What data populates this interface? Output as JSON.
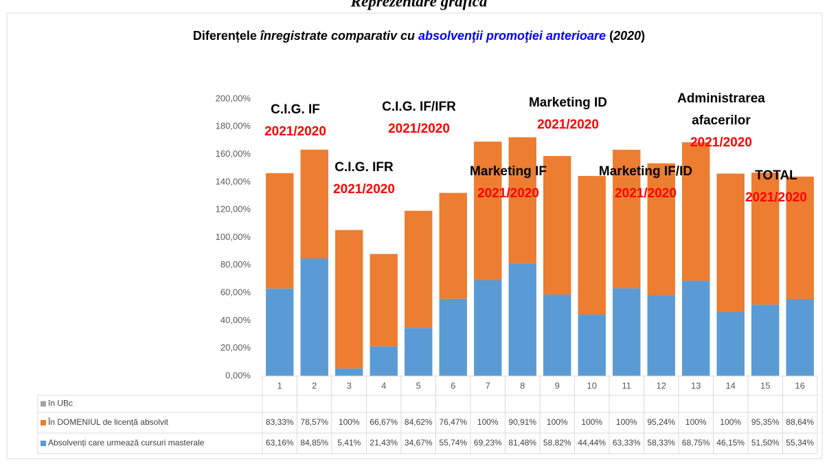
{
  "header": "Reprezentare grafică",
  "chart_data": {
    "type": "bar",
    "stacked": true,
    "title_parts": [
      {
        "text": "Diferențele ",
        "italic": false,
        "color": "#000000"
      },
      {
        "text": "înregistrate comparativ cu ",
        "italic": true,
        "color": "#000000"
      },
      {
        "text": "absolvenţii promoţiei anterioare",
        "italic": true,
        "color": "#0000ff"
      },
      {
        "text": " (",
        "italic": false,
        "color": "#000000"
      },
      {
        "text": "2020",
        "italic": true,
        "color": "#000000"
      },
      {
        "text": ")",
        "italic": false,
        "color": "#000000"
      }
    ],
    "categories": [
      "1",
      "2",
      "3",
      "4",
      "5",
      "6",
      "7",
      "8",
      "9",
      "10",
      "11",
      "12",
      "13",
      "14",
      "15",
      "16"
    ],
    "series": [
      {
        "name": "în UBc",
        "color": "#a5a5a5",
        "values": [
          null,
          null,
          null,
          null,
          null,
          null,
          null,
          null,
          null,
          null,
          null,
          null,
          null,
          null,
          null,
          null
        ]
      },
      {
        "name": "În DOMENIUL de licență absolvit",
        "color": "#ed7d31",
        "values": [
          83.33,
          78.57,
          100,
          66.67,
          84.62,
          76.47,
          100,
          90.91,
          100,
          100,
          100,
          95.24,
          100,
          100,
          95.35,
          88.64
        ],
        "value_labels": [
          "83,33%",
          "78,57%",
          "100%",
          "66,67%",
          "84,62%",
          "76,47%",
          "100%",
          "90,91%",
          "100%",
          "100%",
          "100%",
          "95,24%",
          "100%",
          "100%",
          "95,35%",
          "88,64%"
        ]
      },
      {
        "name": "Absolvenți care urmează cursuri masterale",
        "color": "#5b9bd5",
        "values": [
          63.16,
          84.85,
          5.41,
          21.43,
          34.67,
          55.74,
          69.23,
          81.48,
          58.82,
          44.44,
          63.33,
          58.33,
          68.75,
          46.15,
          51.5,
          55.34
        ],
        "value_labels": [
          "63,16%",
          "84,85%",
          "5,41%",
          "21,43%",
          "34,67%",
          "55,74%",
          "69,23%",
          "81,48%",
          "58,82%",
          "44,44%",
          "63,33%",
          "58,33%",
          "68,75%",
          "46,15%",
          "51,50%",
          "55,34%"
        ]
      }
    ],
    "stack_order": [
      2,
      1,
      0
    ],
    "ylim": [
      0,
      200
    ],
    "yticks": [
      {
        "value": 0,
        "label": "0,00%"
      },
      {
        "value": 20,
        "label": "20,00%"
      },
      {
        "value": 40,
        "label": "40,00%"
      },
      {
        "value": 60,
        "label": "60,00%"
      },
      {
        "value": 80,
        "label": "80,00%"
      },
      {
        "value": 100,
        "label": "100,00%"
      },
      {
        "value": 120,
        "label": "120,00%"
      },
      {
        "value": 140,
        "label": "140,00%"
      },
      {
        "value": 160,
        "label": "160,00%"
      },
      {
        "value": 180,
        "label": "180,00%"
      },
      {
        "value": 200,
        "label": "200,00%"
      }
    ],
    "grid": false,
    "annotations": [
      {
        "lines": [
          "C.I.G. IF"
        ],
        "sub": "2021/2020"
      },
      {
        "lines": [
          "C.I.G. IFR"
        ],
        "sub": "2021/2020"
      },
      {
        "lines": [
          "C.I.G. IF/IFR"
        ],
        "sub": "2021/2020"
      },
      {
        "lines": [
          "Marketing IF"
        ],
        "sub": "2021/2020"
      },
      {
        "lines": [
          "Marketing ID"
        ],
        "sub": "2021/2020"
      },
      {
        "lines": [
          "Marketing IF/ID"
        ],
        "sub": "2021/2020"
      },
      {
        "lines": [
          "Administrarea",
          "afacerilor"
        ],
        "sub": "2021/2020"
      },
      {
        "lines": [
          "TOTAL"
        ],
        "sub": "2021/2020"
      }
    ]
  }
}
